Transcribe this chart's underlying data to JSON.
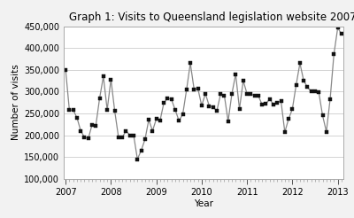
{
  "title": "Graph 1: Visits to Queensland legislation website 2007-2013",
  "xlabel": "Year",
  "ylabel": "Number of visits",
  "ylim": [
    100000,
    450000
  ],
  "yticks": [
    100000,
    150000,
    200000,
    250000,
    300000,
    350000,
    400000,
    450000
  ],
  "values": [
    350000,
    257000,
    258000,
    240000,
    210000,
    195000,
    192000,
    224000,
    222000,
    285000,
    335000,
    258000,
    328000,
    255000,
    195000,
    195000,
    210000,
    200000,
    200000,
    145000,
    165000,
    190000,
    235000,
    210000,
    237000,
    234000,
    274000,
    285000,
    282000,
    258000,
    233000,
    248000,
    304000,
    365000,
    305000,
    307000,
    268000,
    295000,
    267000,
    265000,
    255000,
    294000,
    291000,
    232000,
    295000,
    340000,
    260000,
    325000,
    295000,
    295000,
    290000,
    290000,
    270000,
    272000,
    283000,
    270000,
    275000,
    278000,
    207000,
    237000,
    260000,
    315000,
    365000,
    325000,
    310000,
    300000,
    300000,
    298000,
    245000,
    208000,
    283000,
    386000,
    446000,
    432000
  ],
  "x_major_ticks": [
    0,
    12,
    24,
    36,
    48,
    60,
    72
  ],
  "x_tick_labels": [
    "2007",
    "2008",
    "2009",
    "2010",
    "2011",
    "2012",
    "2013"
  ],
  "line_color": "#888888",
  "marker": "s",
  "marker_size": 2.8,
  "marker_color": "#111111",
  "background_color": "#f2f2f2",
  "plot_bg_color": "#ffffff",
  "grid_color": "#cccccc",
  "title_fontsize": 8.5,
  "axis_label_fontsize": 7.5,
  "tick_fontsize": 7
}
